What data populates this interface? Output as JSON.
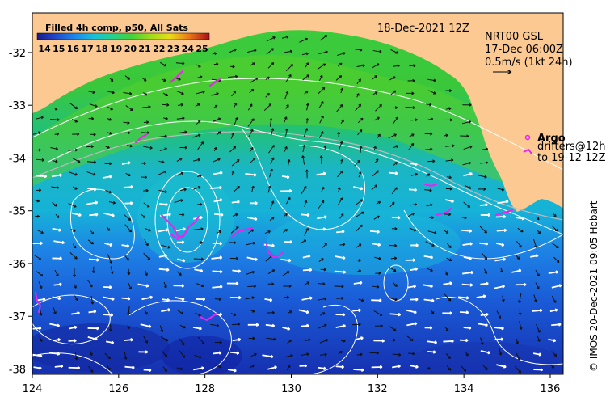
{
  "colorbar": {
    "title": "Filled 4h comp, p50, All Sats",
    "ticks": [
      "14",
      "15",
      "16",
      "17",
      "18",
      "19",
      "20",
      "21",
      "22",
      "23",
      "24",
      "25"
    ],
    "colors": [
      "#1a1a8c",
      "#1f33b0",
      "#1f5ad8",
      "#1d87ec",
      "#17b3e6",
      "#1fd0c8",
      "#28d58c",
      "#3ad24c",
      "#6ad21e",
      "#a8dc1a",
      "#e6dc1a",
      "#f0a01a",
      "#e0501a",
      "#b0141a"
    ]
  },
  "date_label": "18-Dec-2021 12Z",
  "gsl": {
    "title": "NRT00 GSL",
    "time": "17-Dec 06:00Z",
    "scale": "0.5m/s (1kt 24h)"
  },
  "legend": {
    "argo": "Argo",
    "drifters_line1": "drifters@12h",
    "drifters_line2": "to 19-12 12Z"
  },
  "credit": "© IMOS 20-Dec-2021 09:05 Hobart",
  "axes": {
    "x_ticks": [
      "124",
      "126",
      "128",
      "130",
      "132",
      "134",
      "136"
    ],
    "y_ticks": [
      "-32",
      "-33",
      "-34",
      "-35",
      "-36",
      "-37",
      "-38"
    ],
    "x_range": [
      124,
      136.3
    ],
    "y_range": [
      -38.1,
      -31.25
    ]
  },
  "colors": {
    "land": "#fbc991",
    "argo": "#ee22ee",
    "contour": "#ffffff",
    "shelf": "#bbbbbb"
  }
}
